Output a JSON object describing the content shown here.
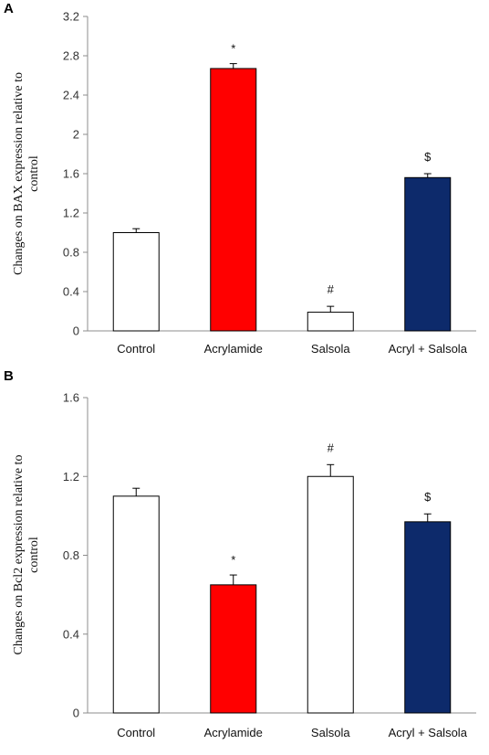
{
  "chart_data": [
    {
      "type": "bar",
      "panel": "A",
      "categories": [
        "Control",
        "Acrylamide",
        "Salsola",
        "Acryl + Salsola"
      ],
      "values": [
        1.0,
        2.67,
        0.19,
        1.56
      ],
      "errors": [
        0.04,
        0.05,
        0.06,
        0.04
      ],
      "annotations": [
        "",
        "*",
        "#",
        "$"
      ],
      "bar_colors": [
        "#ffffff",
        "#ff0000",
        "#ffffff",
        "#0d2a6b"
      ],
      "ylabel_lines": [
        "Changes on BAX expression relative to",
        "control"
      ],
      "ylim": [
        0,
        3.2
      ],
      "yticks": [
        "0",
        "0.4",
        "0.8",
        "1.2",
        "1.6",
        "2",
        "2.4",
        "2.8",
        "3.2"
      ],
      "grid": false
    },
    {
      "type": "bar",
      "panel": "B",
      "categories": [
        "Control",
        "Acrylamide",
        "Salsola",
        "Acryl + Salsola"
      ],
      "values": [
        1.1,
        0.65,
        1.2,
        0.97
      ],
      "errors": [
        0.04,
        0.05,
        0.06,
        0.04
      ],
      "annotations": [
        "",
        "*",
        "#",
        "$"
      ],
      "bar_colors": [
        "#ffffff",
        "#ff0000",
        "#ffffff",
        "#0d2a6b"
      ],
      "ylabel_lines": [
        "Changes on Bcl2 expression relative to",
        "control"
      ],
      "ylim": [
        0,
        1.6
      ],
      "yticks": [
        "0",
        "0.4",
        "0.8",
        "1.2",
        "1.6"
      ],
      "grid": false
    }
  ]
}
